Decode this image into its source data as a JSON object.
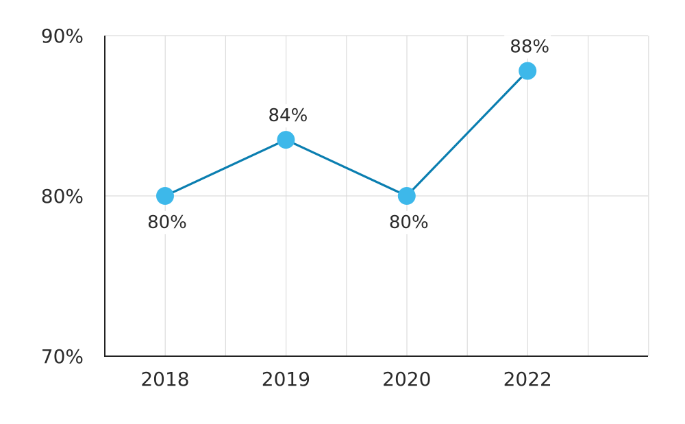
{
  "chart_data": {
    "type": "line",
    "categories": [
      "2018",
      "2019",
      "2020",
      "2022"
    ],
    "series": [
      {
        "values": [
          80,
          83.5,
          80,
          87.8
        ]
      }
    ],
    "data_labels": [
      "80%",
      "84%",
      "80%",
      "88%"
    ],
    "data_label_position": [
      "below",
      "above",
      "below",
      "above"
    ],
    "y_ticks": [
      {
        "value": 70,
        "label": "70%"
      },
      {
        "value": 80,
        "label": "80%"
      },
      {
        "value": 90,
        "label": "90%"
      }
    ],
    "ylim": [
      70,
      90
    ],
    "title": "",
    "xlabel": "",
    "ylabel": "",
    "grid": true,
    "colors": {
      "line": "#0a7eb0",
      "marker": "#3db8ea",
      "grid": "#dcdcdc",
      "axis": "#222222"
    }
  }
}
